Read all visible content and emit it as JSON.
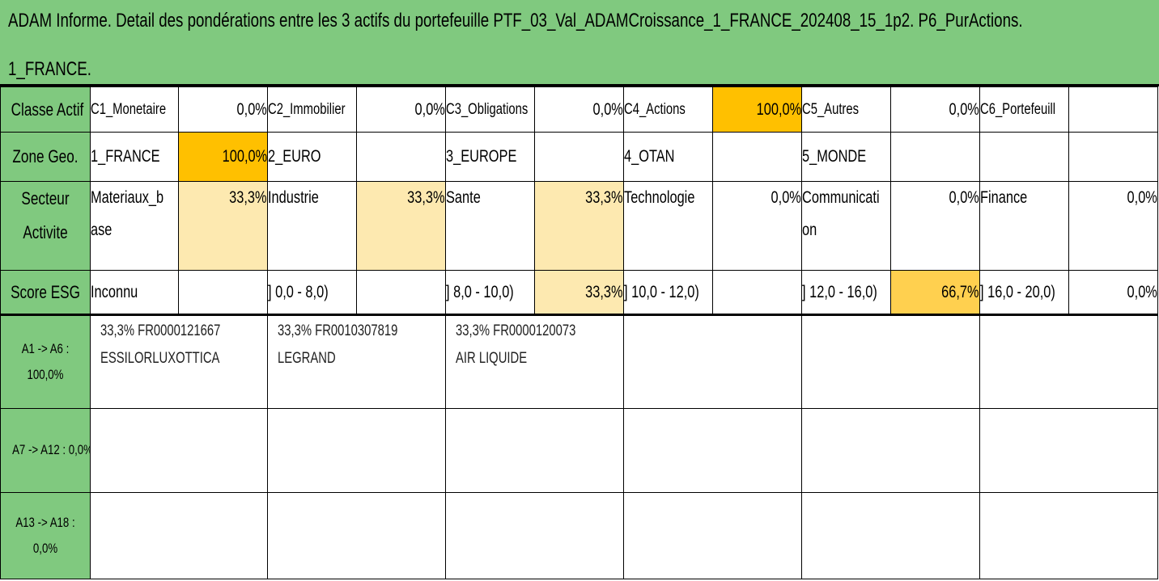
{
  "title": {
    "line1": "ADAM Informe. Detail des pondérations entre les 3 actifs du portefeuille PTF_03_Val_ADAMCroissance_1_FRANCE_202408_15_1p2. P6_PurActions.",
    "line2": "1_FRANCE."
  },
  "colors": {
    "header_green": "#80c97f",
    "weight_100": "#ffc000",
    "weight_33": "#fde9b0",
    "weight_67": "#ffd04f"
  },
  "classe_actif": {
    "label": "Classe Actif",
    "items": [
      {
        "name": "C1_Monetaire",
        "pct": "0,0%"
      },
      {
        "name": "C2_Immobilier",
        "pct": "0,0%"
      },
      {
        "name": "C3_Obligations",
        "pct": "0,0%"
      },
      {
        "name": "C4_Actions",
        "pct": "100,0%"
      },
      {
        "name": "C5_Autres",
        "pct": "0,0%"
      },
      {
        "name": "C6_Portefeuill",
        "pct": ""
      }
    ]
  },
  "zone_geo": {
    "label": "Zone Geo.",
    "items": [
      {
        "name": "1_FRANCE",
        "pct": "100,0%"
      },
      {
        "name": "2_EURO",
        "pct": ""
      },
      {
        "name": "3_EUROPE",
        "pct": ""
      },
      {
        "name": "4_OTAN",
        "pct": ""
      },
      {
        "name": "5_MONDE",
        "pct": ""
      },
      {
        "name": "",
        "pct": ""
      }
    ]
  },
  "secteur": {
    "label_line1": "Secteur",
    "label_line2": "Activite",
    "items": [
      {
        "name_line1": "Materiaux_b",
        "name_line2": "ase",
        "pct": "33,3%"
      },
      {
        "name_line1": "Industrie",
        "name_line2": "",
        "pct": "33,3%"
      },
      {
        "name_line1": "Sante",
        "name_line2": "",
        "pct": "33,3%"
      },
      {
        "name_line1": "Technologie",
        "name_line2": "",
        "pct": "0,0%"
      },
      {
        "name_line1": "Communicati",
        "name_line2": "on",
        "pct": "0,0%"
      },
      {
        "name_line1": "Finance",
        "name_line2": "",
        "pct": "0,0%"
      }
    ]
  },
  "score_esg": {
    "label": "Score ESG",
    "items": [
      {
        "name": "Inconnu",
        "pct": ""
      },
      {
        "name": "] 0,0 - 8,0)",
        "pct": ""
      },
      {
        "name": "] 8,0 - 10,0)",
        "pct": "33,3%"
      },
      {
        "name": "] 10,0 - 12,0)",
        "pct": ""
      },
      {
        "name": "] 12,0 - 16,0)",
        "pct": "66,7%"
      },
      {
        "name": "] 16,0 - 20,0)",
        "pct": "0,0%"
      }
    ]
  },
  "assets": {
    "group1_label_line1": "A1 -> A6 :",
    "group1_label_line2": "100,0%",
    "group2_label": "A7 -> A12 : 0,0%",
    "group3_label_line1": "A13 -> A18 :",
    "group3_label_line2": "0,0%",
    "positions": [
      {
        "weight_isin": "33,3% FR0000121667",
        "name": "ESSILORLUXOTTICA"
      },
      {
        "weight_isin": "33,3% FR0010307819",
        "name": "LEGRAND"
      },
      {
        "weight_isin": "33,3% FR0000120073",
        "name": "AIR LIQUIDE"
      }
    ]
  }
}
